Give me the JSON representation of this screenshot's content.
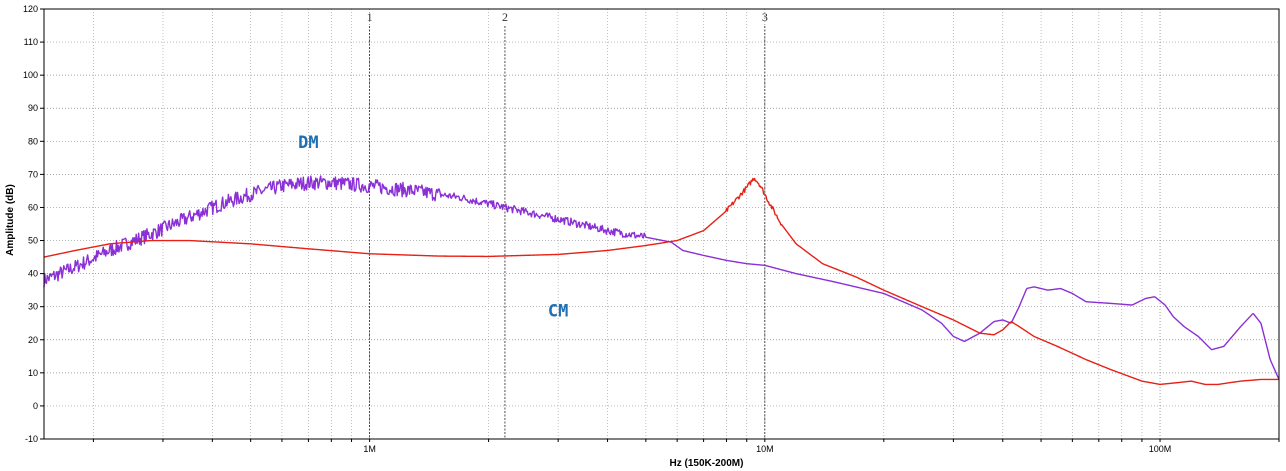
{
  "chart_data": {
    "type": "line",
    "xlabel": "Hz  (150K-200M)",
    "ylabel": "Amplitude (dB)",
    "x_scale": "log",
    "xlim": [
      150000,
      200000000
    ],
    "ylim": [
      -10,
      120
    ],
    "y_ticks": [
      -10,
      0,
      10,
      20,
      30,
      40,
      50,
      60,
      70,
      80,
      90,
      100,
      110,
      120
    ],
    "x_tick_labels": [
      {
        "value": 1000000,
        "label": "1M"
      },
      {
        "value": 10000000,
        "label": "10M"
      },
      {
        "value": 100000000,
        "label": "100M"
      }
    ],
    "grid": true,
    "markers": [
      {
        "label": "1",
        "x": 1000000
      },
      {
        "label": "2",
        "x": 2200000
      },
      {
        "label": "3",
        "x": 10000000
      }
    ],
    "series": [
      {
        "name": "DM",
        "color": "#8b2fd6",
        "noisy_until": 5000000,
        "points": [
          [
            150000,
            38
          ],
          [
            180000,
            42
          ],
          [
            220000,
            47
          ],
          [
            280000,
            52
          ],
          [
            350000,
            57
          ],
          [
            420000,
            61
          ],
          [
            500000,
            64
          ],
          [
            600000,
            66.5
          ],
          [
            700000,
            67.5
          ],
          [
            800000,
            67.5
          ],
          [
            1000000,
            66.5
          ],
          [
            1300000,
            65
          ],
          [
            1700000,
            63
          ],
          [
            2200000,
            60
          ],
          [
            3000000,
            56.5
          ],
          [
            4000000,
            53
          ],
          [
            5000000,
            51
          ],
          [
            5800000,
            49.5
          ],
          [
            6200000,
            47
          ],
          [
            7000000,
            45.5
          ],
          [
            8000000,
            44
          ],
          [
            9000000,
            43
          ],
          [
            10000000,
            42.5
          ],
          [
            12000000,
            40
          ],
          [
            15000000,
            37.5
          ],
          [
            20000000,
            34
          ],
          [
            25000000,
            29
          ],
          [
            28000000,
            25
          ],
          [
            30000000,
            21
          ],
          [
            32000000,
            19.5
          ],
          [
            35000000,
            22
          ],
          [
            38000000,
            25.5
          ],
          [
            40000000,
            26
          ],
          [
            42000000,
            25
          ],
          [
            44000000,
            30
          ],
          [
            46000000,
            35.5
          ],
          [
            48000000,
            36
          ],
          [
            52000000,
            35
          ],
          [
            56000000,
            35.5
          ],
          [
            60000000,
            34
          ],
          [
            65000000,
            31.5
          ],
          [
            75000000,
            31
          ],
          [
            85000000,
            30.5
          ],
          [
            92000000,
            32.5
          ],
          [
            97000000,
            33
          ],
          [
            103000000,
            30.5
          ],
          [
            108000000,
            27
          ],
          [
            115000000,
            24
          ],
          [
            125000000,
            21
          ],
          [
            135000000,
            17
          ],
          [
            145000000,
            18
          ],
          [
            160000000,
            24
          ],
          [
            172000000,
            28
          ],
          [
            180000000,
            25
          ],
          [
            190000000,
            14
          ],
          [
            200000000,
            8
          ]
        ]
      },
      {
        "name": "CM",
        "color": "#e82016",
        "noisy_until": 0,
        "points": [
          [
            150000,
            45
          ],
          [
            180000,
            47
          ],
          [
            220000,
            49
          ],
          [
            280000,
            50
          ],
          [
            350000,
            50
          ],
          [
            500000,
            49
          ],
          [
            700000,
            47.5
          ],
          [
            1000000,
            46
          ],
          [
            1500000,
            45.3
          ],
          [
            2000000,
            45.2
          ],
          [
            3000000,
            45.8
          ],
          [
            4000000,
            47
          ],
          [
            5000000,
            48.5
          ],
          [
            6000000,
            50
          ],
          [
            7000000,
            53
          ],
          [
            8000000,
            59
          ],
          [
            9000000,
            66
          ],
          [
            9400000,
            69
          ],
          [
            9700000,
            67
          ],
          [
            10200000,
            62
          ],
          [
            11000000,
            55
          ],
          [
            12000000,
            49
          ],
          [
            14000000,
            43
          ],
          [
            17000000,
            39
          ],
          [
            20000000,
            35
          ],
          [
            25000000,
            30
          ],
          [
            30000000,
            26
          ],
          [
            35000000,
            22
          ],
          [
            38000000,
            21.5
          ],
          [
            40000000,
            23
          ],
          [
            42000000,
            25.5
          ],
          [
            44000000,
            24
          ],
          [
            48000000,
            21
          ],
          [
            55000000,
            18
          ],
          [
            65000000,
            14
          ],
          [
            75000000,
            11
          ],
          [
            90000000,
            7.5
          ],
          [
            100000000,
            6.5
          ],
          [
            110000000,
            7
          ],
          [
            120000000,
            7.5
          ],
          [
            130000000,
            6.5
          ],
          [
            140000000,
            6.5
          ],
          [
            160000000,
            7.5
          ],
          [
            180000000,
            8
          ],
          [
            200000000,
            8
          ]
        ]
      }
    ],
    "series_labels": [
      {
        "text": "DM",
        "color": "#1f6fb5",
        "x": 700000,
        "y": 78
      },
      {
        "text": "CM",
        "color": "#1f6fb5",
        "x": 3000000,
        "y": 27
      }
    ]
  }
}
